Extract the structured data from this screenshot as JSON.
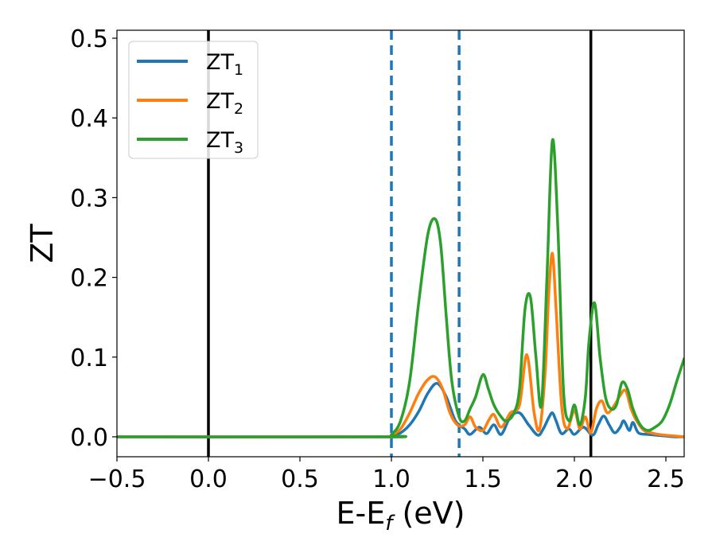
{
  "chart_data": {
    "type": "line",
    "xlabel": {
      "base": "E-E",
      "sub": "f",
      "unit": " (eV)"
    },
    "ylabel": "ZT",
    "xlim": [
      -0.5,
      2.6
    ],
    "ylim": [
      -0.025,
      0.51
    ],
    "xticks": [
      -0.5,
      0.0,
      0.5,
      1.0,
      1.5,
      2.0,
      2.5
    ],
    "xtick_labels": [
      "−0.5",
      "0.0",
      "0.5",
      "1.0",
      "1.5",
      "2.0",
      "2.5"
    ],
    "yticks": [
      0.0,
      0.1,
      0.2,
      0.3,
      0.4,
      0.5
    ],
    "ytick_labels": [
      "0.0",
      "0.1",
      "0.2",
      "0.3",
      "0.4",
      "0.5"
    ],
    "grid": false,
    "legend_position": "upper-left",
    "vlines": [
      {
        "x": 0.0,
        "style": "solid",
        "color": "#000000"
      },
      {
        "x": 2.09,
        "style": "solid",
        "color": "#000000"
      },
      {
        "x": 1.0,
        "style": "dashed",
        "color": "#1f77b4"
      },
      {
        "x": 1.37,
        "style": "dashed",
        "color": "#1f77b4"
      }
    ],
    "series": [
      {
        "name": "ZT",
        "sub": "1",
        "color": "#1f77b4",
        "x": [
          -0.5,
          0.96,
          1.0,
          1.05,
          1.1,
          1.15,
          1.2,
          1.25,
          1.3,
          1.35,
          1.4,
          1.43,
          1.48,
          1.52,
          1.56,
          1.6,
          1.65,
          1.7,
          1.75,
          1.8,
          1.83,
          1.86,
          1.88,
          1.9,
          1.93,
          1.97,
          2.0,
          2.05,
          2.1,
          2.13,
          2.16,
          2.19,
          2.22,
          2.25,
          2.27,
          2.3,
          2.32,
          2.35,
          2.4,
          2.45,
          2.5,
          2.55,
          2.6
        ],
        "y": [
          0.0,
          0.0,
          0.001,
          0.005,
          0.015,
          0.032,
          0.055,
          0.067,
          0.05,
          0.02,
          0.01,
          0.003,
          0.012,
          0.004,
          0.015,
          0.003,
          0.025,
          0.03,
          0.015,
          0.002,
          0.01,
          0.024,
          0.03,
          0.02,
          0.004,
          0.01,
          0.003,
          0.012,
          0.002,
          0.015,
          0.026,
          0.015,
          0.005,
          0.012,
          0.02,
          0.008,
          0.018,
          0.005,
          0.003,
          0.002,
          0.001,
          0.0,
          0.0
        ]
      },
      {
        "name": "ZT",
        "sub": "2",
        "color": "#ff7f0e",
        "x": [
          -0.5,
          0.96,
          1.0,
          1.05,
          1.1,
          1.15,
          1.2,
          1.24,
          1.28,
          1.32,
          1.36,
          1.4,
          1.43,
          1.46,
          1.5,
          1.53,
          1.56,
          1.6,
          1.65,
          1.7,
          1.74,
          1.78,
          1.81,
          1.84,
          1.86,
          1.88,
          1.9,
          1.93,
          1.96,
          2.0,
          2.03,
          2.06,
          2.09,
          2.12,
          2.15,
          2.18,
          2.22,
          2.25,
          2.28,
          2.31,
          2.34,
          2.38,
          2.42,
          2.46,
          2.5,
          2.55,
          2.6
        ],
        "y": [
          0.0,
          0.0,
          0.002,
          0.01,
          0.03,
          0.055,
          0.072,
          0.075,
          0.06,
          0.03,
          0.015,
          0.015,
          0.025,
          0.012,
          0.008,
          0.02,
          0.028,
          0.012,
          0.03,
          0.04,
          0.103,
          0.03,
          0.01,
          0.08,
          0.18,
          0.23,
          0.16,
          0.04,
          0.01,
          0.033,
          0.01,
          0.025,
          0.005,
          0.035,
          0.045,
          0.03,
          0.04,
          0.052,
          0.058,
          0.035,
          0.02,
          0.008,
          0.005,
          0.003,
          0.002,
          0.001,
          0.0
        ]
      },
      {
        "name": "ZT",
        "sub": "3",
        "color": "#2ca02c",
        "x": [
          -0.5,
          0.96,
          1.0,
          1.05,
          1.1,
          1.15,
          1.2,
          1.24,
          1.27,
          1.3,
          1.33,
          1.37,
          1.4,
          1.43,
          1.46,
          1.5,
          1.53,
          1.56,
          1.6,
          1.63,
          1.67,
          1.7,
          1.73,
          1.76,
          1.79,
          1.82,
          1.85,
          1.88,
          1.91,
          1.94,
          1.97,
          2.0,
          2.03,
          2.06,
          2.08,
          2.11,
          2.14,
          2.17,
          2.2,
          2.23,
          2.26,
          2.29,
          2.32,
          2.36,
          2.4,
          2.44,
          2.48,
          2.52,
          2.56,
          2.6
        ],
        "y": [
          0.0,
          0.0,
          0.003,
          0.02,
          0.07,
          0.17,
          0.255,
          0.273,
          0.24,
          0.15,
          0.07,
          0.025,
          0.02,
          0.035,
          0.05,
          0.078,
          0.06,
          0.04,
          0.025,
          0.02,
          0.03,
          0.06,
          0.16,
          0.175,
          0.1,
          0.04,
          0.2,
          0.372,
          0.26,
          0.06,
          0.02,
          0.04,
          0.015,
          0.05,
          0.12,
          0.168,
          0.1,
          0.05,
          0.035,
          0.04,
          0.068,
          0.06,
          0.035,
          0.015,
          0.008,
          0.012,
          0.02,
          0.04,
          0.07,
          0.098
        ]
      }
    ]
  }
}
